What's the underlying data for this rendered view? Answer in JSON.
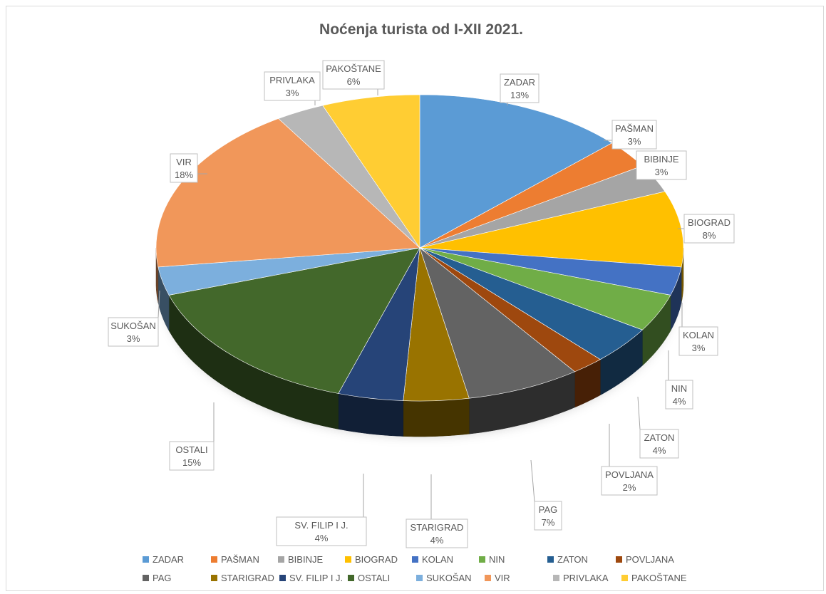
{
  "chart_data": {
    "type": "pie",
    "title": "Noćenja turista od I-XII 2021.",
    "categories": [
      "ZADAR",
      "PAŠMAN",
      "BIBINJE",
      "BIOGRAD",
      "KOLAN",
      "NIN",
      "ZATON",
      "POVLJANA",
      "PAG",
      "STARIGRAD",
      "SV. FILIP I J.",
      "OSTALI",
      "SUKOŠAN",
      "VIR",
      "PRIVLAKA",
      "PAKOŠTANE"
    ],
    "values": [
      13,
      3,
      3,
      8,
      3,
      4,
      4,
      2,
      7,
      4,
      4,
      15,
      3,
      18,
      3,
      6
    ],
    "value_labels": [
      "13%",
      "3%",
      "3%",
      "8%",
      "3%",
      "4%",
      "4%",
      "2%",
      "7%",
      "4%",
      "4%",
      "15%",
      "3%",
      "18%",
      "3%",
      "6%"
    ],
    "colors": [
      "#5b9bd5",
      "#ed7d31",
      "#a5a5a5",
      "#ffc000",
      "#4472c4",
      "#70ad47",
      "#255e91",
      "#9e480e",
      "#636363",
      "#997300",
      "#264478",
      "#43682b",
      "#7cafdd",
      "#f1975a",
      "#b7b7b7",
      "#ffcd33"
    ],
    "legend_position": "bottom",
    "style": "3d-pie"
  }
}
